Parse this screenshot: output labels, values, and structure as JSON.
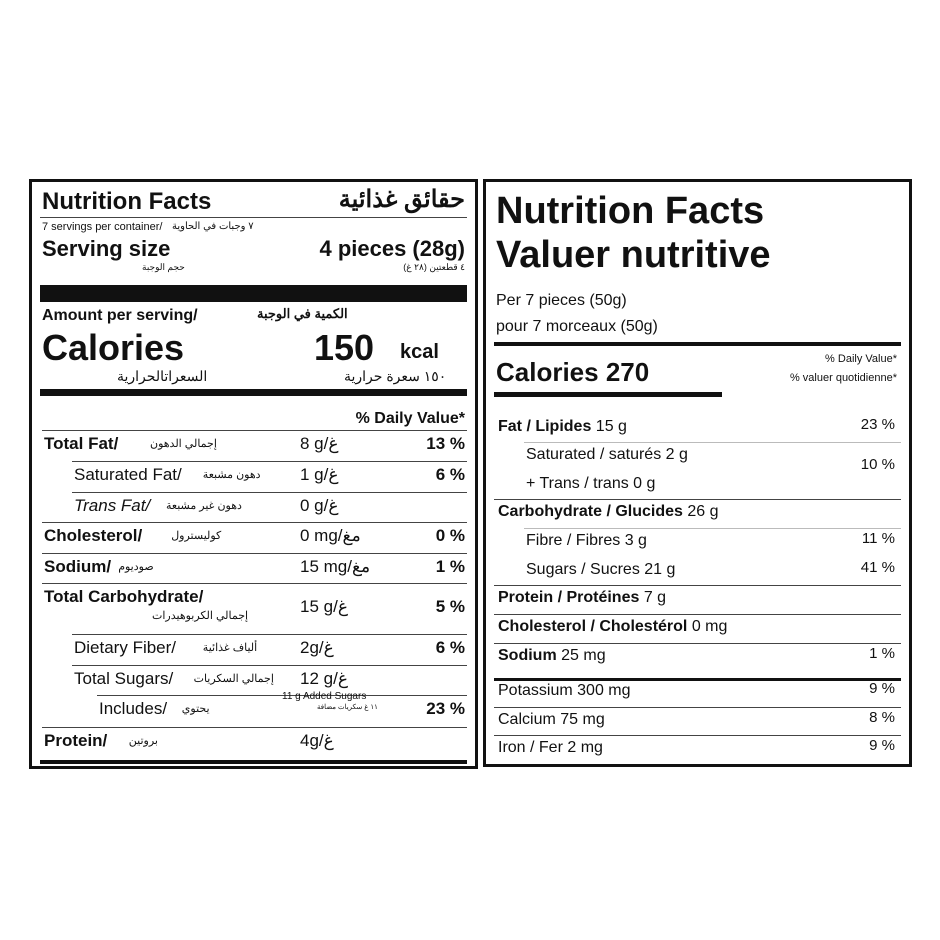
{
  "left": {
    "title": "Nutrition Facts",
    "title_ar": "حقائق غذائية",
    "servings": "7 servings per container/",
    "servings_ar": "٧ وجبات في الحاوية",
    "serving_size_label": "Serving size",
    "serving_size_label_ar": "حجم الوجبة",
    "serving_size_value": "4 pieces (28g)",
    "serving_size_value_ar": "٤ قطعتين (٢٨ غ)",
    "amount_per_serving": "Amount per serving/",
    "amount_per_serving_ar": "الكمية في الوجبة",
    "calories_label": "Calories",
    "calories_label_ar": "السعراتالحرارية",
    "calories_value": "150",
    "calories_unit": "kcal",
    "calories_value_ar": "١٥٠ سعرة حرارية",
    "dv_header": "% Daily Value*",
    "rows": [
      {
        "label": "Total Fat/",
        "label_ar": "إجمالي الدهون",
        "amount": "8 g/غ",
        "dv": "13 %",
        "bold": true
      },
      {
        "label": "Saturated Fat/",
        "label_ar": "دهون مشبعة",
        "amount": "1 g/غ",
        "dv": "6 %"
      },
      {
        "label": "Trans Fat/",
        "label_ar": "دهون غير مشبعة",
        "amount": "0 g/غ",
        "dv": ""
      },
      {
        "label": "Cholesterol/",
        "label_ar": "كوليسترول",
        "amount": "0 mg/مغ",
        "dv": "0 %",
        "bold": true
      },
      {
        "label": "Sodium/",
        "label_ar": "صوديوم",
        "amount": "15 mg/مغ",
        "dv": "1 %",
        "bold": true
      },
      {
        "label": "Total Carbohydrate/",
        "label_ar": "إجمالي الكربوهيدرات",
        "amount": "15 g/غ",
        "dv": "5 %",
        "bold": true
      },
      {
        "label": "Dietary Fiber/",
        "label_ar": "ألياف غذائية",
        "amount": "2g/غ",
        "dv": "6 %"
      },
      {
        "label": "Total Sugars/",
        "label_ar": "إجمالي السكريات",
        "amount": "12 g/غ",
        "dv": ""
      },
      {
        "label": "Includes/",
        "label_ar": "يحتوي",
        "amount": "11 g Added Sugars",
        "amount_ar": "١١ غ سكريات مضافة",
        "dv": "23 %"
      },
      {
        "label": "Protein/",
        "label_ar": "بروتين",
        "amount": "4g/غ",
        "dv": "",
        "bold": true
      }
    ]
  },
  "right": {
    "title_en": "Nutrition Facts",
    "title_fr": "Valuer nutritive",
    "per_en": "Per 7 pieces (50g)",
    "per_fr": "pour 7 morceaux (50g)",
    "calories": "Calories 270",
    "dv_en": "% Daily Value*",
    "dv_fr": "% valuer quotidienne*",
    "rows": [
      {
        "label": "Fat / Lipides",
        "amount": "15 g",
        "dv": "23 %",
        "bold": true
      },
      {
        "label": "Saturated / saturés",
        "amount": "2 g",
        "dv": "10 %"
      },
      {
        "label": "+ Trans / trans",
        "amount": "0 g",
        "dv": ""
      },
      {
        "label": "Carbohydrate / Glucides",
        "amount": "26 g",
        "dv": "",
        "bold": true
      },
      {
        "label": "Fibre / Fibres",
        "amount": "3 g",
        "dv": "11 %"
      },
      {
        "label": "Sugars / Sucres",
        "amount": "21 g",
        "dv": "41 %"
      },
      {
        "label": "Protein / Protéines",
        "amount": "7 g",
        "dv": "",
        "bold": true
      },
      {
        "label": "Cholesterol / Cholestérol",
        "amount": "0 mg",
        "dv": "",
        "bold": true
      },
      {
        "label": "Sodium",
        "amount": "25 mg",
        "dv": "1 %",
        "bold": true
      },
      {
        "label": "Potassium",
        "amount": "300 mg",
        "dv": "9 %"
      },
      {
        "label": "Calcium",
        "amount": "75 mg",
        "dv": "8 %"
      },
      {
        "label": "Iron / Fer",
        "amount": "2 mg",
        "dv": "9 %"
      }
    ]
  }
}
